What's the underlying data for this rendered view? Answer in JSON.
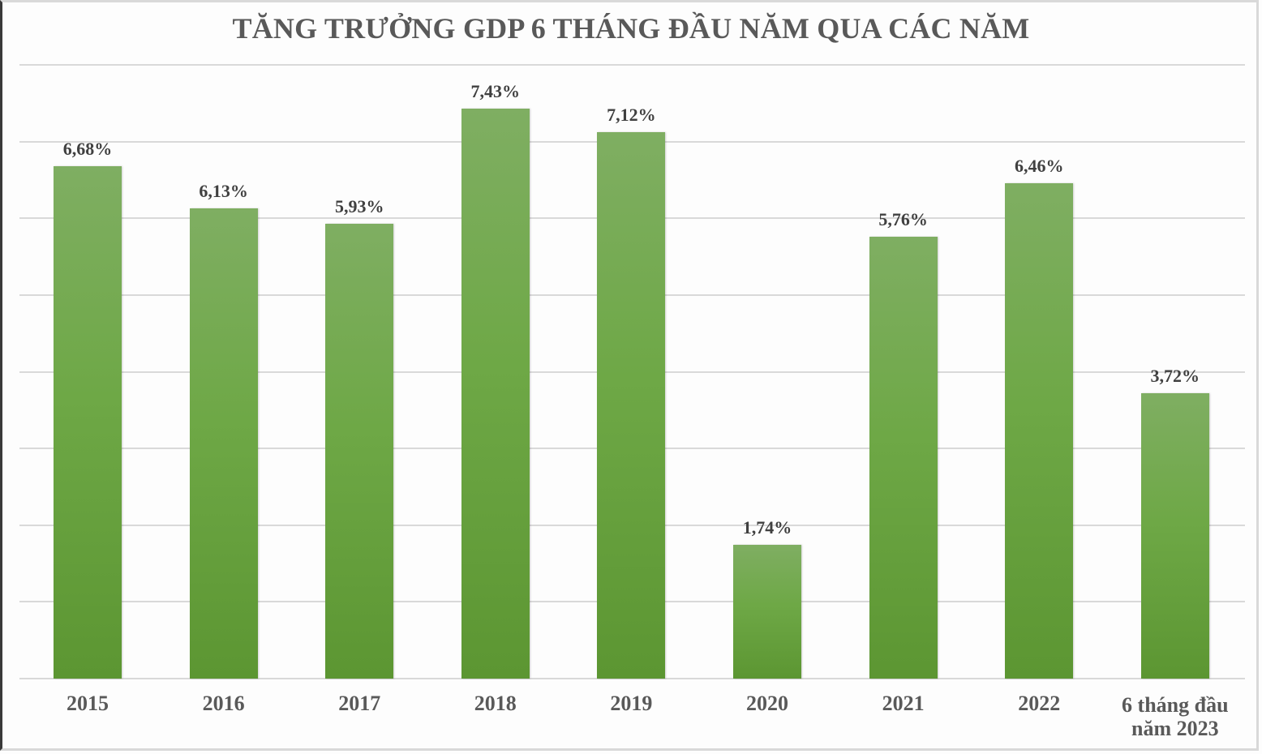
{
  "chart_data": {
    "type": "bar",
    "title": "TĂNG TRƯỞNG GDP 6 THÁNG ĐẦU NĂM QUA CÁC NĂM",
    "xlabel": "",
    "ylabel": "",
    "ylim": [
      0,
      8
    ],
    "grid": true,
    "gridline_step": 1,
    "legend": null,
    "categories": [
      "2015",
      "2016",
      "2017",
      "2018",
      "2019",
      "2020",
      "2021",
      "2022",
      "6 tháng đầu năm 2023"
    ],
    "values": [
      6.68,
      6.13,
      5.93,
      7.43,
      7.12,
      1.74,
      5.76,
      6.46,
      3.72
    ],
    "data_labels": [
      "6,68%",
      "6,13%",
      "5,93%",
      "7,43%",
      "7,12%",
      "1,74%",
      "5,76%",
      "6,46%",
      "3,72%"
    ],
    "bar_color": "#6ea846"
  },
  "title": "TĂNG TRƯỞNG GDP 6 THÁNG ĐẦU NĂM QUA CÁC NĂM",
  "labels": {
    "last_line1": "6 tháng đầu",
    "last_line2": "năm 2023"
  }
}
